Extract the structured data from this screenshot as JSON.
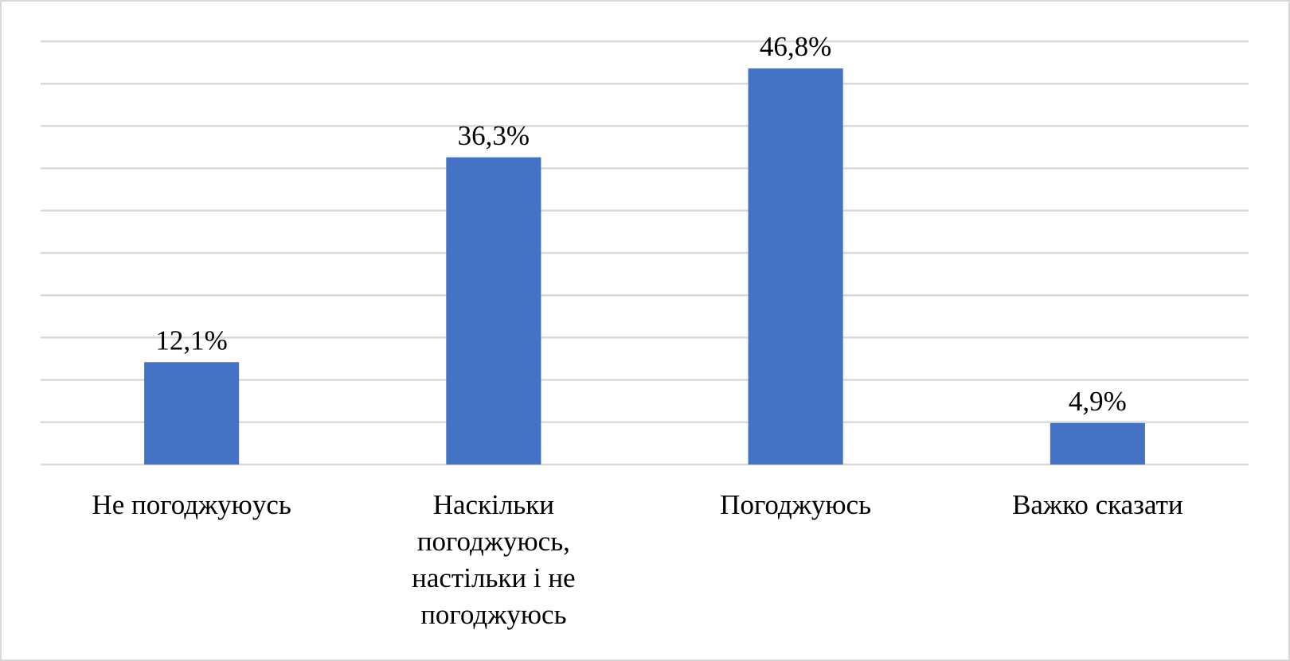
{
  "chart_data": {
    "type": "bar",
    "categories": [
      "Не погоджуюусь",
      "Наскільки погоджуюсь, настільки і не погоджуюсь",
      "Погоджуюсь",
      "Важко сказати"
    ],
    "values": [
      12.1,
      36.3,
      46.8,
      4.9
    ],
    "value_labels": [
      "12,1%",
      "36,3%",
      "46,8%",
      "4,9%"
    ],
    "color": "#4472c4",
    "ylim": [
      0,
      50
    ],
    "yticks": [
      0,
      5,
      10,
      15,
      20,
      25,
      30,
      35,
      40,
      45,
      50
    ],
    "grid": true
  }
}
